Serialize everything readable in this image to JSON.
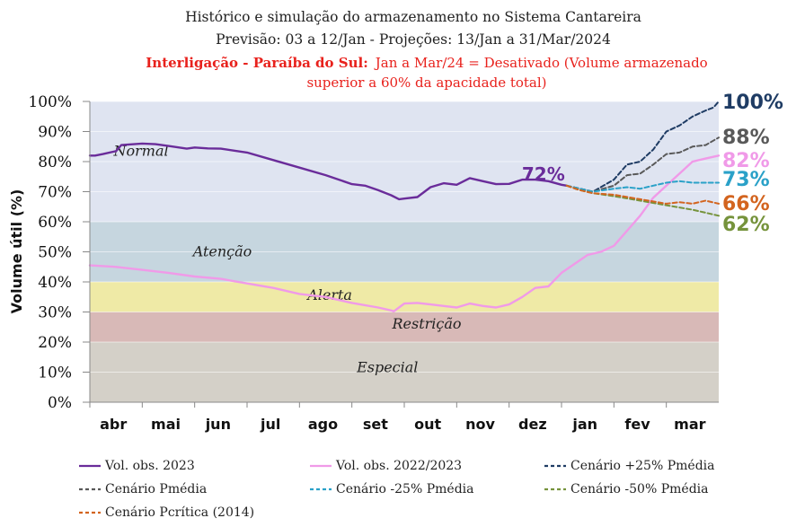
{
  "title": {
    "line1": "Histórico e simulação do armazenamento no Sistema Cantareira",
    "line2": "Previsão: 03 a 12/Jan  -  Projeções: 13/Jan a 31/Mar/2024",
    "line3_bold": "Interligação - Paraíba do Sul:",
    "line3_rest": "Jan a Mar/24 = Desativado (Volume armazenado",
    "line4": "superior a 60% da apacidade total)"
  },
  "colors": {
    "vol2023": "#6a2c9a",
    "vol2022": "#f09ae8",
    "c_plus25": "#1f3c64",
    "c_pmedia": "#595959",
    "c_minus25": "#2aa1c8",
    "c_minus50": "#76933c",
    "c_pcritica": "#d3641f",
    "zone_normal": "#dfe4f1",
    "zone_atencao": "#c6d6df",
    "zone_alerta": "#efeaa6",
    "zone_restricao": "#d8b9b7",
    "zone_especial": "#d4d0c8"
  },
  "chart_data": {
    "type": "line",
    "title": "Histórico e simulação do armazenamento no Sistema Cantareira",
    "ylabel": "Volume útil (%)",
    "xlabel": "",
    "ylim": [
      0,
      100
    ],
    "xlim": [
      0,
      12
    ],
    "yticks": [
      "0%",
      "10%",
      "20%",
      "30%",
      "40%",
      "50%",
      "60%",
      "70%",
      "80%",
      "90%",
      "100%"
    ],
    "categories": [
      "abr",
      "mai",
      "jun",
      "jul",
      "ago",
      "set",
      "out",
      "nov",
      "dez",
      "jan",
      "fev",
      "mar"
    ],
    "zones": [
      {
        "name": "Normal",
        "from": 60,
        "to": 100,
        "color_key": "zone_normal"
      },
      {
        "name": "Atenção",
        "from": 40,
        "to": 60,
        "color_key": "zone_atencao"
      },
      {
        "name": "Alerta",
        "from": 30,
        "to": 40,
        "color_key": "zone_alerta"
      },
      {
        "name": "Restrição",
        "from": 20,
        "to": 30,
        "color_key": "zone_restricao"
      },
      {
        "name": "Especial",
        "from": 0,
        "to": 20,
        "color_key": "zone_especial"
      }
    ],
    "series": [
      {
        "name": "Vol. obs. 2023",
        "color_key": "vol2023",
        "dash": false,
        "x": [
          0,
          0.1,
          0.25,
          0.5,
          0.6,
          0.75,
          1.0,
          1.25,
          1.5,
          1.85,
          2.0,
          2.25,
          2.5,
          3.0,
          3.5,
          4.0,
          4.5,
          5.0,
          5.25,
          5.5,
          5.75,
          5.9,
          6.0,
          6.25,
          6.5,
          6.75,
          7.0,
          7.25,
          7.5,
          7.75,
          8.0,
          8.25,
          8.5,
          8.75,
          9.0,
          9.1
        ],
        "y": [
          82,
          82,
          82.5,
          83.5,
          85.5,
          85.7,
          86,
          85.8,
          85.2,
          84.3,
          84.7,
          84.4,
          84.3,
          83,
          80.5,
          78,
          75.5,
          72.5,
          72,
          70.5,
          68.8,
          67.5,
          67.7,
          68.2,
          71.5,
          72.8,
          72.3,
          74.5,
          73.5,
          72.5,
          72.6,
          74,
          74,
          73.5,
          72.3,
          72
        ]
      },
      {
        "name": "Vol. obs. 2022/2023",
        "color_key": "vol2022",
        "dash": false,
        "x": [
          0,
          0.5,
          1.0,
          1.5,
          2.0,
          2.5,
          3.0,
          3.5,
          4.0,
          4.5,
          5.0,
          5.5,
          5.75,
          5.8,
          6.0,
          6.25,
          6.5,
          6.75,
          7.0,
          7.25,
          7.5,
          7.75,
          8.0,
          8.25,
          8.5,
          8.75,
          9.0,
          9.25,
          9.5,
          9.75,
          10.0,
          10.25,
          10.5,
          10.75,
          11.0,
          11.25,
          11.5,
          11.75,
          12.0
        ],
        "y": [
          45.5,
          45,
          44,
          43,
          41.8,
          41,
          39.5,
          38,
          36,
          35,
          33,
          31.5,
          30.5,
          30.2,
          32.8,
          33,
          32.5,
          32,
          31.5,
          32.8,
          32,
          31.5,
          32.5,
          35,
          38,
          38.5,
          43,
          46,
          49,
          50,
          52,
          57,
          62,
          68,
          72,
          76,
          80,
          81,
          82
        ]
      },
      {
        "name": "Cenário +25% Pmédia",
        "color_key": "c_plus25",
        "dash": true,
        "x": [
          9.1,
          9.35,
          9.6,
          10.0,
          10.25,
          10.5,
          10.75,
          11.0,
          11.25,
          11.5,
          11.75,
          11.9,
          12.0
        ],
        "y": [
          72,
          71,
          70,
          74,
          79,
          80,
          84,
          90,
          92,
          95,
          97,
          98,
          100
        ]
      },
      {
        "name": "Cenário Pmédia",
        "color_key": "c_pmedia",
        "dash": true,
        "x": [
          9.1,
          9.35,
          9.6,
          10.0,
          10.25,
          10.5,
          10.75,
          11.0,
          11.25,
          11.5,
          11.75,
          12.0
        ],
        "y": [
          72,
          71,
          70,
          72,
          75.5,
          76,
          79,
          82.5,
          83,
          85,
          85.5,
          88
        ]
      },
      {
        "name": "Cenário -25% Pmédia",
        "color_key": "c_minus25",
        "dash": true,
        "x": [
          9.1,
          9.35,
          9.6,
          10.0,
          10.25,
          10.5,
          10.75,
          11.0,
          11.25,
          11.5,
          11.75,
          12.0
        ],
        "y": [
          72,
          71,
          70,
          71,
          71.5,
          71,
          72,
          73,
          73.5,
          73,
          73,
          73
        ]
      },
      {
        "name": "Cenário -50% Pmédia",
        "color_key": "c_minus50",
        "dash": true,
        "x": [
          9.1,
          9.35,
          9.6,
          10.0,
          10.5,
          11.0,
          11.5,
          12.0
        ],
        "y": [
          72,
          70.5,
          69.5,
          68.5,
          67,
          65.5,
          64,
          62
        ]
      },
      {
        "name": "Cenário Pcrítica (2014)",
        "color_key": "c_pcritica",
        "dash": true,
        "x": [
          9.1,
          9.35,
          9.6,
          10.0,
          10.5,
          11.0,
          11.25,
          11.5,
          11.75,
          12.0
        ],
        "y": [
          72,
          70.5,
          69.5,
          69,
          67.5,
          66,
          66.5,
          66,
          67,
          66
        ]
      }
    ],
    "end_labels": [
      {
        "text": "100%",
        "value": 100,
        "color_key": "c_plus25"
      },
      {
        "text": "88%",
        "value": 88,
        "color_key": "c_pmedia"
      },
      {
        "text": "82%",
        "value": 82,
        "color_key": "vol2022"
      },
      {
        "text": "73%",
        "value": 73,
        "color_key": "c_minus25"
      },
      {
        "text": "66%",
        "value": 66,
        "color_key": "c_pcritica"
      },
      {
        "text": "62%",
        "value": 62,
        "color_key": "c_minus50"
      }
    ],
    "annotations": [
      {
        "text": "72%",
        "x": 9.1,
        "y": 72,
        "color_key": "vol2023"
      }
    ]
  }
}
